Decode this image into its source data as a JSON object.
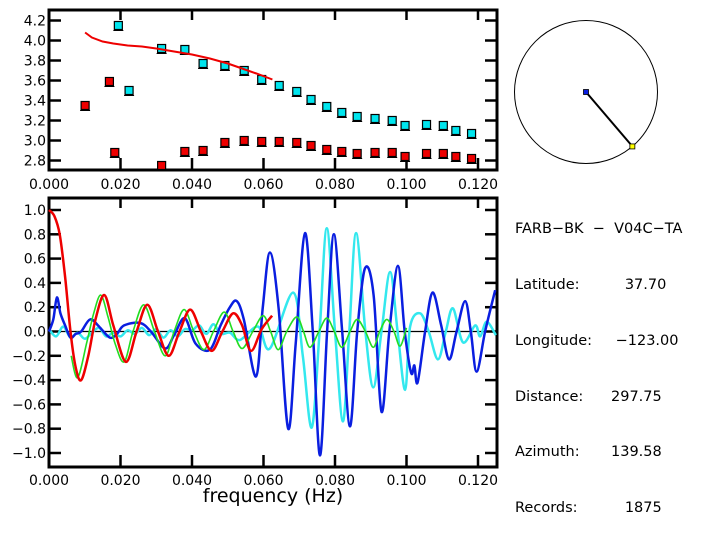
{
  "chart_data": [
    {
      "id": "group-velocity",
      "type": "scatter",
      "title": "",
      "xlabel": "",
      "ylabel": "",
      "xlim": [
        0.0,
        0.1253
      ],
      "ylim": [
        2.7,
        4.3
      ],
      "xticks": [
        "0.000",
        "0.020",
        "0.040",
        "0.060",
        "0.080",
        "0.100",
        "0.120"
      ],
      "xtick_values": [
        0.0,
        0.02,
        0.04,
        0.06,
        0.08,
        0.1,
        0.12
      ],
      "yticks": [
        "4.2",
        "4.0",
        "3.8",
        "3.6",
        "3.4",
        "3.2",
        "3.0",
        "2.8"
      ],
      "ytick_values": [
        4.2,
        4.0,
        3.8,
        3.6,
        3.4,
        3.2,
        3.0,
        2.8
      ],
      "series": [
        {
          "name": "cyan-points",
          "marker": "square",
          "color": "#00e5ee",
          "x": [
            0.0194,
            0.0224,
            0.0315,
            0.038,
            0.0431,
            0.0492,
            0.0546,
            0.0595,
            0.0644,
            0.0693,
            0.0733,
            0.0777,
            0.0819,
            0.0862,
            0.0912,
            0.096,
            0.0996,
            0.1056,
            0.1103,
            0.1138,
            0.1182
          ],
          "y": [
            4.15,
            3.5,
            3.92,
            3.91,
            3.77,
            3.75,
            3.7,
            3.61,
            3.55,
            3.49,
            3.41,
            3.34,
            3.28,
            3.24,
            3.22,
            3.2,
            3.15,
            3.16,
            3.15,
            3.1,
            3.07
          ]
        },
        {
          "name": "red-points",
          "marker": "square",
          "color": "#ee0000",
          "x": [
            0.0101,
            0.0169,
            0.0184,
            0.0315,
            0.038,
            0.0431,
            0.0492,
            0.0546,
            0.0595,
            0.0644,
            0.0693,
            0.0733,
            0.0777,
            0.0819,
            0.0862,
            0.0912,
            0.096,
            0.0996,
            0.1056,
            0.1103,
            0.1138,
            0.1182
          ],
          "y": [
            3.35,
            3.59,
            2.88,
            2.75,
            2.89,
            2.9,
            2.98,
            3.0,
            2.99,
            2.99,
            2.98,
            2.95,
            2.91,
            2.89,
            2.87,
            2.88,
            2.88,
            2.84,
            2.87,
            2.87,
            2.84,
            2.82
          ]
        },
        {
          "name": "red-curve",
          "marker": "line",
          "color": "#ee0000",
          "x": [
            0.0101,
            0.012,
            0.015,
            0.018,
            0.022,
            0.026,
            0.03,
            0.035,
            0.04,
            0.045,
            0.05,
            0.054,
            0.058,
            0.0625
          ],
          "y": [
            4.08,
            4.03,
            3.99,
            3.97,
            3.95,
            3.94,
            3.92,
            3.89,
            3.86,
            3.82,
            3.77,
            3.72,
            3.67,
            3.61
          ]
        }
      ]
    },
    {
      "id": "correlation-spectrum",
      "type": "line",
      "title": "",
      "xlabel": "frequency (Hz)",
      "ylabel": "",
      "xlim": [
        0.0,
        0.1253
      ],
      "ylim": [
        -1.12,
        1.1
      ],
      "xticks": [
        "0.000",
        "0.020",
        "0.040",
        "0.060",
        "0.080",
        "0.100",
        "0.120"
      ],
      "xtick_values": [
        0.0,
        0.02,
        0.04,
        0.06,
        0.08,
        0.1,
        0.12
      ],
      "yticks": [
        "1.0",
        "0.8",
        "0.6",
        "0.4",
        "0.2",
        "0.0",
        "−0.2",
        "−0.4",
        "−0.6",
        "−0.8",
        "−1.0"
      ],
      "ytick_values": [
        1.0,
        0.8,
        0.6,
        0.4,
        0.2,
        0.0,
        -0.2,
        -0.4,
        -0.6,
        -0.8,
        -1.0
      ],
      "zero_line": true,
      "series": [
        {
          "name": "blue",
          "color": "#0a1ee0",
          "x": [
            0.0,
            0.0012,
            0.0022,
            0.0032,
            0.0045,
            0.006,
            0.0075,
            0.009,
            0.0115,
            0.014,
            0.017,
            0.019,
            0.021,
            0.0255,
            0.0285,
            0.0325,
            0.035,
            0.038,
            0.041,
            0.045,
            0.048,
            0.0506,
            0.0525,
            0.0545,
            0.0579,
            0.0598,
            0.0618,
            0.0642,
            0.0669,
            0.069,
            0.0716,
            0.0738,
            0.0758,
            0.0778,
            0.0797,
            0.082,
            0.0842,
            0.0862,
            0.0884,
            0.0908,
            0.093,
            0.0952,
            0.0976,
            0.0995,
            0.1013,
            0.1022,
            0.1031,
            0.1052,
            0.1073,
            0.1097,
            0.1119,
            0.114,
            0.1164,
            0.118,
            0.1196,
            0.122,
            0.1248
          ],
          "y": [
            0.0,
            0.1,
            0.28,
            0.15,
            0.05,
            -0.05,
            -0.02,
            0.0,
            0.1,
            0.04,
            -0.05,
            -0.02,
            0.05,
            0.07,
            0.0,
            -0.14,
            -0.03,
            0.11,
            -0.1,
            -0.15,
            0.05,
            0.2,
            0.25,
            0.1,
            -0.37,
            0.2,
            0.65,
            0.2,
            -0.8,
            -0.1,
            0.81,
            0.0,
            -1.02,
            0.0,
            0.8,
            0.0,
            -0.78,
            0.0,
            0.52,
            0.3,
            -0.66,
            0.0,
            0.54,
            0.0,
            -0.34,
            -0.28,
            -0.42,
            0.0,
            0.32,
            0.05,
            -0.23,
            0.0,
            0.25,
            0.0,
            -0.33,
            0.0,
            0.34
          ]
        },
        {
          "name": "cyan",
          "color": "#33e8ee",
          "x": [
            0.0,
            0.002,
            0.004,
            0.006,
            0.008,
            0.01,
            0.012,
            0.014,
            0.016,
            0.018,
            0.02,
            0.022,
            0.024,
            0.026,
            0.028,
            0.03,
            0.032,
            0.034,
            0.036,
            0.038,
            0.04,
            0.042,
            0.044,
            0.046,
            0.048,
            0.0506,
            0.0534,
            0.0585,
            0.0618,
            0.0683,
            0.071,
            0.0735,
            0.0757,
            0.0777,
            0.08,
            0.0822,
            0.084,
            0.0859,
            0.0885,
            0.0907,
            0.093,
            0.0954,
            0.0975,
            0.0996,
            0.101,
            0.1038,
            0.1062,
            0.1088,
            0.111,
            0.113,
            0.1158,
            0.1192,
            0.1206,
            0.1224,
            0.125
          ],
          "y": [
            0.02,
            -0.04,
            0.04,
            -0.05,
            -0.01,
            -0.06,
            -0.01,
            0.03,
            -0.04,
            -0.01,
            -0.04,
            0.01,
            -0.02,
            0.03,
            -0.03,
            0.02,
            -0.05,
            0.01,
            -0.04,
            0.02,
            0.01,
            0.05,
            -0.02,
            0.06,
            -0.02,
            -0.01,
            -0.07,
            0.04,
            -0.14,
            0.32,
            -0.2,
            -0.79,
            0.0,
            0.85,
            0.0,
            -0.74,
            0.0,
            0.81,
            0.0,
            -0.46,
            0.0,
            0.49,
            0.0,
            -0.48,
            0.04,
            0.15,
            0.0,
            -0.23,
            0.0,
            0.19,
            -0.09,
            0.05,
            -0.04,
            0.08,
            -0.03
          ]
        },
        {
          "name": "green",
          "color": "#22dd22",
          "x": [
            0.0062,
            0.008,
            0.0105,
            0.0125,
            0.0145,
            0.0165,
            0.0185,
            0.021,
            0.0235,
            0.0265,
            0.0295,
            0.0325,
            0.035,
            0.0378,
            0.0405,
            0.0433,
            0.046,
            0.049,
            0.0515,
            0.054,
            0.057,
            0.0599,
            0.062,
            0.0641,
            0.0665,
            0.0693,
            0.0712,
            0.073,
            0.0755,
            0.0777,
            0.0798,
            0.0819,
            0.0842,
            0.0862,
            0.0885,
            0.0907,
            0.0925,
            0.0945,
            0.0965,
            0.0982,
            0.1
          ],
          "y": [
            -0.2,
            -0.38,
            -0.1,
            0.15,
            0.3,
            0.12,
            -0.1,
            -0.25,
            0.0,
            0.22,
            0.0,
            -0.2,
            0.0,
            0.18,
            0.0,
            -0.15,
            0.0,
            0.16,
            0.0,
            -0.14,
            0.0,
            0.13,
            0.0,
            -0.15,
            0.0,
            0.12,
            0.0,
            -0.13,
            0.0,
            0.11,
            0.0,
            -0.13,
            0.0,
            0.1,
            0.0,
            -0.13,
            0.0,
            0.1,
            0.0,
            -0.12,
            0.03
          ]
        },
        {
          "name": "red",
          "color": "#ee0000",
          "x": [
            0.0,
            0.0015,
            0.003,
            0.0045,
            0.006,
            0.0075,
            0.009,
            0.011,
            0.013,
            0.0155,
            0.018,
            0.0215,
            0.0245,
            0.0275,
            0.0305,
            0.0335,
            0.0365,
            0.0395,
            0.0425,
            0.0455,
            0.0485,
            0.0515,
            0.054,
            0.0565,
            0.0595,
            0.0624
          ],
          "y": [
            1.0,
            0.95,
            0.8,
            0.45,
            0.0,
            -0.3,
            -0.4,
            -0.2,
            0.1,
            0.3,
            0.05,
            -0.25,
            0.0,
            0.22,
            0.0,
            -0.2,
            0.0,
            0.18,
            0.0,
            -0.16,
            0.0,
            0.15,
            0.05,
            -0.16,
            0.02,
            0.13
          ]
        }
      ]
    }
  ],
  "station_map": {
    "azimuth_deg": 139.58,
    "center_marker_color": "#0a1ee0",
    "end_marker_color": "#ffff00"
  },
  "info": {
    "pair": "FARB−BK  −  V04C−TA",
    "rows": [
      {
        "label": "Latitude:",
        "value": "   37.70"
      },
      {
        "label": "Longitude:",
        "value": " −123.00"
      },
      {
        "label": "Distance:",
        "value": "297.75"
      },
      {
        "label": "Azimuth:",
        "value": "139.58"
      },
      {
        "label": "Records:",
        "value": "   1875"
      }
    ]
  }
}
